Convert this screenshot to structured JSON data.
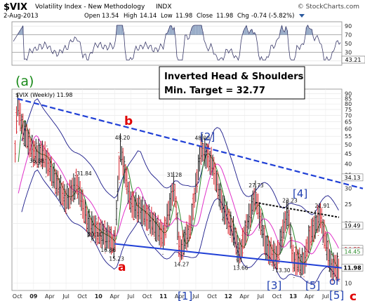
{
  "header": {
    "symbol": "$VIX",
    "name": "Volatility Index - New Methodology",
    "exchange": "INDX",
    "watermark": "© StockCharts.com",
    "date": "2-Aug-2013",
    "open_label": "Open",
    "open": "13.54",
    "high_label": "High",
    "high": "14.14",
    "low_label": "Low",
    "low": "11.98",
    "close_label": "Close",
    "close": "11.98",
    "chg_label": "Chg",
    "chg": "-0.74 (-5.82%)"
  },
  "colors": {
    "price_up": "#1a1a1a",
    "price_down": "#d8222a",
    "ma_short": "#2e8b2e",
    "ma_long": "#e030c8",
    "bands": "#1b1b8a",
    "trendline": "#1f3fd6",
    "dotted_trend": "#111111",
    "wave_blue": "#1f3fb0",
    "wave_red": "#e00000",
    "wave_green": "#1a8a1a",
    "rsi_line": "#3a3a6a",
    "rsi_fill": "#8aa0c0"
  },
  "indicator": {
    "value_label": "43.21",
    "ticks": [
      "90",
      "70",
      "50",
      "30",
      "10"
    ]
  },
  "annotation": {
    "line1": "Inverted Head & Shoulders",
    "line2": "Min. Target = 32.77"
  },
  "price_panel": {
    "legend": "$VIX (Weekly) 11.98",
    "ticks": [
      "90",
      "85",
      "80",
      "75",
      "70",
      "65",
      "60",
      "55",
      "50",
      "45",
      "40",
      "35",
      "30",
      "25",
      "20",
      "15",
      "10"
    ],
    "right_labels": [
      "34.13",
      "19.49",
      "14.89",
      "14.45",
      "11.98"
    ]
  },
  "wave_labels": {
    "a_top": "(a)",
    "b": "b",
    "a": "a",
    "c": "c",
    "w2": "[2]",
    "w1": "[1]",
    "w3": "[3]",
    "w4": "[4]",
    "w5": "[5]",
    "or": "or",
    "w5b": "[5]"
  },
  "chart_data": {
    "type": "line",
    "title": "$VIX Volatility Index - New Methodology INDX",
    "subtitle": "$VIX (Weekly) 11.98",
    "scale": "log",
    "ylim": [
      10,
      90
    ],
    "x_ticks": [
      "Oct",
      "09",
      "Apr",
      "Jul",
      "Oct",
      "10",
      "Apr",
      "Jul",
      "Oct",
      "11",
      "Apr",
      "Jul",
      "Oct",
      "12",
      "Apr",
      "Jul",
      "Oct",
      "13",
      "Apr",
      "Jul"
    ],
    "price_labels": [
      "36.88",
      "31.84",
      "20.10",
      "16.86",
      "15.23",
      "48.20",
      "31.28",
      "14.27",
      "48.00",
      "27.73",
      "13.66",
      "13.30",
      "23.23",
      "21.91"
    ],
    "series": [
      {
        "name": "$VIX",
        "points": [
          {
            "x": "2008-09",
            "y": 22
          },
          {
            "x": "2008-10",
            "y": 80
          },
          {
            "x": "2008-11",
            "y": 60
          },
          {
            "x": "2009-01",
            "y": 45
          },
          {
            "x": "2009-03",
            "y": 44
          },
          {
            "x": "2009-05",
            "y": 33
          },
          {
            "x": "2009-07",
            "y": 26
          },
          {
            "x": "2009-09",
            "y": 31.84
          },
          {
            "x": "2009-11",
            "y": 20.1
          },
          {
            "x": "2010-01",
            "y": 18
          },
          {
            "x": "2010-03",
            "y": 16.86
          },
          {
            "x": "2010-04",
            "y": 15.23
          },
          {
            "x": "2010-05",
            "y": 48.2
          },
          {
            "x": "2010-07",
            "y": 25
          },
          {
            "x": "2010-09",
            "y": 23
          },
          {
            "x": "2010-11",
            "y": 20
          },
          {
            "x": "2011-01",
            "y": 17
          },
          {
            "x": "2011-03",
            "y": 31.28
          },
          {
            "x": "2011-04",
            "y": 14.27
          },
          {
            "x": "2011-06",
            "y": 19
          },
          {
            "x": "2011-08",
            "y": 48
          },
          {
            "x": "2011-10",
            "y": 40
          },
          {
            "x": "2011-12",
            "y": 24
          },
          {
            "x": "2012-02",
            "y": 18
          },
          {
            "x": "2012-03",
            "y": 13.66
          },
          {
            "x": "2012-06",
            "y": 27.73
          },
          {
            "x": "2012-08",
            "y": 15
          },
          {
            "x": "2012-10",
            "y": 13.3
          },
          {
            "x": "2012-12",
            "y": 23.23
          },
          {
            "x": "2013-01",
            "y": 13
          },
          {
            "x": "2013-03",
            "y": 12.5
          },
          {
            "x": "2013-04",
            "y": 17
          },
          {
            "x": "2013-06",
            "y": 21.91
          },
          {
            "x": "2013-08",
            "y": 11.98
          }
        ]
      }
    ],
    "bands": {
      "upper_label": "34.13",
      "lower_label": "19.49",
      "ma_labels": [
        "14.89",
        "14.45"
      ]
    },
    "target": 32.77,
    "grid": true
  }
}
